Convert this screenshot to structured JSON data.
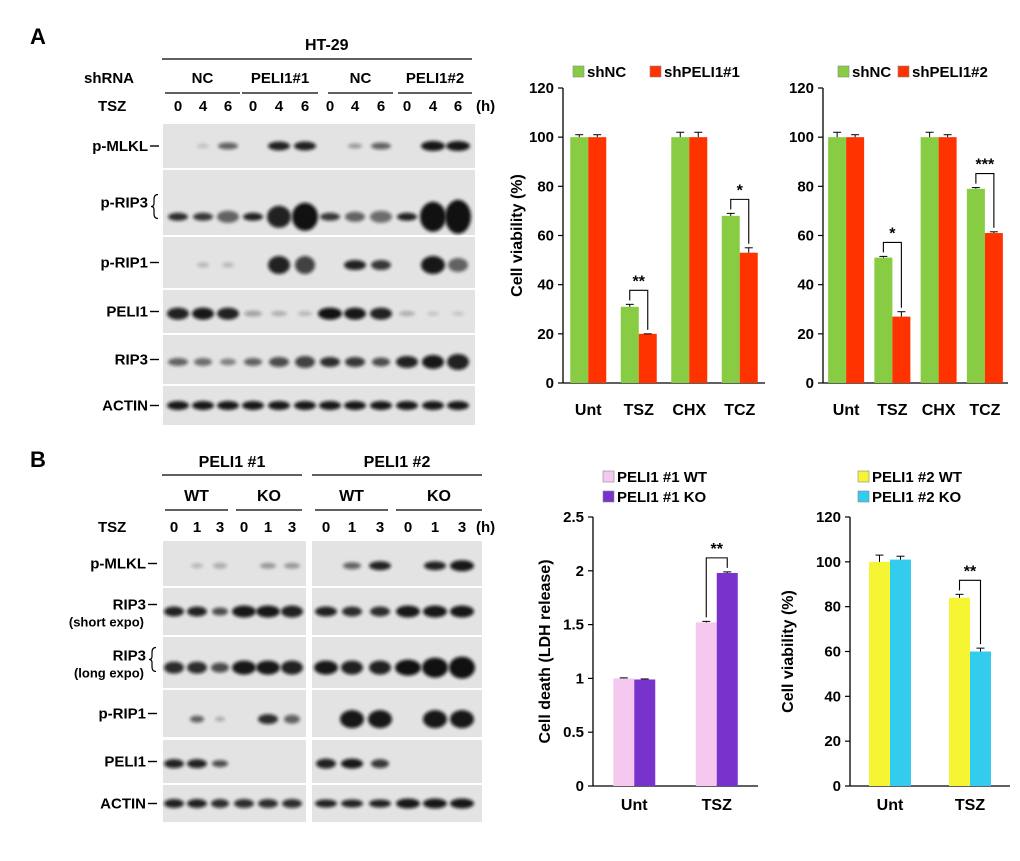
{
  "panel_a": {
    "letter": "A",
    "blot": {
      "cell_line": "HT-29",
      "shrna_label": "shRNA",
      "tsz_label": "TSZ",
      "hours_unit": "(h)",
      "groups": [
        "NC",
        "PELI1#1",
        "NC",
        "PELI1#2"
      ],
      "timepoints": [
        "0",
        "4",
        "6"
      ],
      "rows": [
        {
          "label": "p-MLKL",
          "marker": "dash"
        },
        {
          "label": "p-RIP3",
          "marker": "brace"
        },
        {
          "label": "p-RIP1",
          "marker": "dash"
        },
        {
          "label": "PELI1",
          "marker": "dash"
        },
        {
          "label": "RIP3",
          "marker": "dash"
        },
        {
          "label": "ACTIN",
          "marker": "dash"
        }
      ]
    }
  },
  "panel_b": {
    "letter": "B",
    "blot": {
      "tsz_label": "TSZ",
      "hours_unit": "(h)",
      "groups": [
        "PELI1 #1",
        "PELI1 #2"
      ],
      "genotypes": [
        "WT",
        "KO",
        "WT",
        "KO"
      ],
      "timepoints": [
        "0",
        "1",
        "3"
      ],
      "rows": [
        {
          "label": "p-MLKL",
          "sub": "",
          "marker": "dash"
        },
        {
          "label": "RIP3",
          "sub": "(short expo)",
          "marker": "dash"
        },
        {
          "label": "RIP3",
          "sub": "(long expo)",
          "marker": "brace"
        },
        {
          "label": "p-RIP1",
          "sub": "",
          "marker": "dash"
        },
        {
          "label": "PELI1",
          "sub": "",
          "marker": "dash"
        },
        {
          "label": "ACTIN",
          "sub": "",
          "marker": "dash"
        }
      ]
    }
  },
  "chart_data": [
    {
      "type": "bar",
      "categories": [
        "Unt",
        "TSZ",
        "CHX",
        "TCZ"
      ],
      "series": [
        {
          "name": "shNC",
          "color": "#88cc44",
          "values": [
            100,
            31,
            100,
            68
          ],
          "errors": [
            1,
            1,
            2,
            1
          ]
        },
        {
          "name": "shPELI1#1",
          "color": "#ff3300",
          "values": [
            100,
            20,
            100,
            53
          ],
          "errors": [
            1,
            0,
            2,
            2
          ]
        }
      ],
      "ylabel": "Cell viability (%)",
      "ylim": [
        0,
        120
      ],
      "yticks": [
        0,
        20,
        40,
        60,
        80,
        100,
        120
      ],
      "significance": [
        {
          "category": "TSZ",
          "text": "**"
        },
        {
          "category": "TCZ",
          "text": "*"
        }
      ]
    },
    {
      "type": "bar",
      "categories": [
        "Unt",
        "TSZ",
        "CHX",
        "TCZ"
      ],
      "series": [
        {
          "name": "shNC",
          "color": "#88cc44",
          "values": [
            100,
            51,
            100,
            79
          ],
          "errors": [
            2,
            0.5,
            2,
            0.5
          ]
        },
        {
          "name": "shPELI1#2",
          "color": "#ff3300",
          "values": [
            100,
            27,
            100,
            61
          ],
          "errors": [
            1,
            2,
            1,
            0.5
          ]
        }
      ],
      "ylabel": "",
      "ylim": [
        0,
        120
      ],
      "yticks": [
        0,
        20,
        40,
        60,
        80,
        100,
        120
      ],
      "significance": [
        {
          "category": "TSZ",
          "text": "*"
        },
        {
          "category": "TCZ",
          "text": "***"
        }
      ]
    },
    {
      "type": "bar",
      "categories": [
        "Unt",
        "TSZ"
      ],
      "series": [
        {
          "name": "PELI1 #1 WT",
          "color": "#f5c8f0",
          "values": [
            1.0,
            1.52
          ],
          "errors": [
            0.005,
            0.01
          ]
        },
        {
          "name": "PELI1 #1 KO",
          "color": "#7733cc",
          "values": [
            0.99,
            1.98
          ],
          "errors": [
            0.005,
            0.01
          ]
        }
      ],
      "ylabel": "Cell death (LDH release)",
      "ylim": [
        0,
        2.5
      ],
      "yticks": [
        "0",
        "0.5",
        "1",
        "1.5",
        "2",
        "2.5"
      ],
      "significance": [
        {
          "category": "TSZ",
          "text": "**"
        }
      ]
    },
    {
      "type": "bar",
      "categories": [
        "Unt",
        "TSZ"
      ],
      "series": [
        {
          "name": "PELI1 #2 WT",
          "color": "#f5f533",
          "values": [
            100,
            84
          ],
          "errors": [
            3,
            1.5
          ]
        },
        {
          "name": "PELI1 #2 KO",
          "color": "#33ccee",
          "values": [
            101,
            60
          ],
          "errors": [
            1.5,
            1.5
          ]
        }
      ],
      "ylabel": "Cell viability (%)",
      "ylim": [
        0,
        120
      ],
      "yticks": [
        0,
        20,
        40,
        60,
        80,
        100,
        120
      ],
      "significance": [
        {
          "category": "TSZ",
          "text": "**"
        }
      ]
    }
  ]
}
